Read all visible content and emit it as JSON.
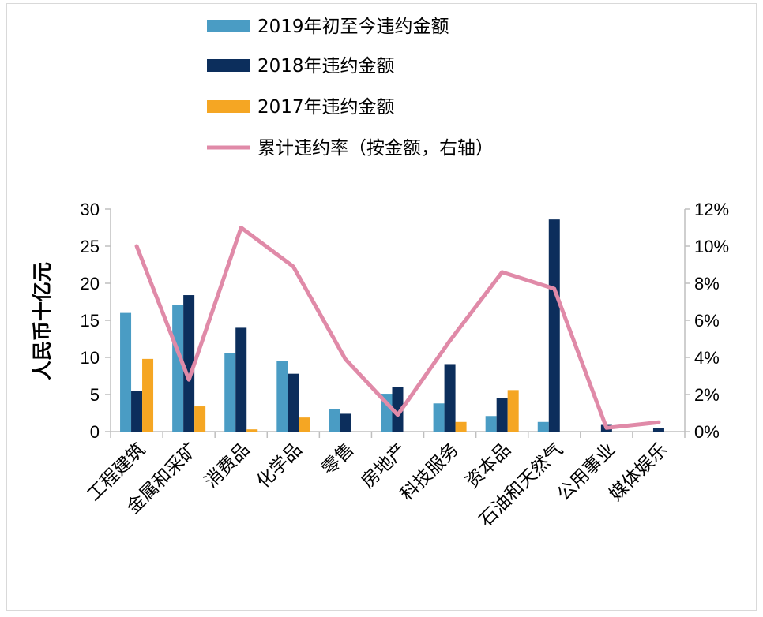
{
  "chart_data": {
    "type": "bar",
    "categories": [
      "工程建筑",
      "金属和采矿",
      "消费品",
      "化学品",
      "零售",
      "房地产",
      "科技服务",
      "资本品",
      "石油和天然气",
      "公用事业",
      "媒体娱乐"
    ],
    "series": [
      {
        "name": "2019年初至今违约金额",
        "kind": "bar",
        "axis": "left",
        "color": "#4a9cc4",
        "values": [
          16.0,
          17.1,
          10.6,
          9.5,
          3.0,
          5.1,
          3.8,
          2.1,
          1.3,
          0.0,
          0.0
        ]
      },
      {
        "name": "2018年违约金额",
        "kind": "bar",
        "axis": "left",
        "color": "#0c2e5c",
        "values": [
          5.5,
          18.4,
          14.0,
          7.8,
          2.4,
          6.0,
          9.1,
          4.5,
          28.6,
          0.9,
          0.5
        ]
      },
      {
        "name": "2017年违约金额",
        "kind": "bar",
        "axis": "left",
        "color": "#f5a623",
        "values": [
          9.8,
          3.4,
          0.3,
          1.9,
          0.0,
          0.0,
          1.3,
          5.6,
          0.0,
          0.0,
          0.0
        ]
      },
      {
        "name": "累计违约率（按金额，右轴）",
        "kind": "line",
        "axis": "right",
        "color": "#e08aa8",
        "values": [
          10.0,
          2.8,
          11.0,
          8.9,
          3.9,
          0.9,
          4.9,
          8.6,
          7.7,
          0.2,
          0.5
        ]
      }
    ],
    "ylabel": "人民币十亿元",
    "ylim": [
      0,
      30
    ],
    "yticks": [
      "0",
      "5",
      "10",
      "15",
      "20",
      "25",
      "30"
    ],
    "y2lim": [
      0,
      12
    ],
    "y2ticks": [
      "0%",
      "2%",
      "4%",
      "6%",
      "8%",
      "10%",
      "12%"
    ],
    "legend_position": "top",
    "grid": false
  }
}
